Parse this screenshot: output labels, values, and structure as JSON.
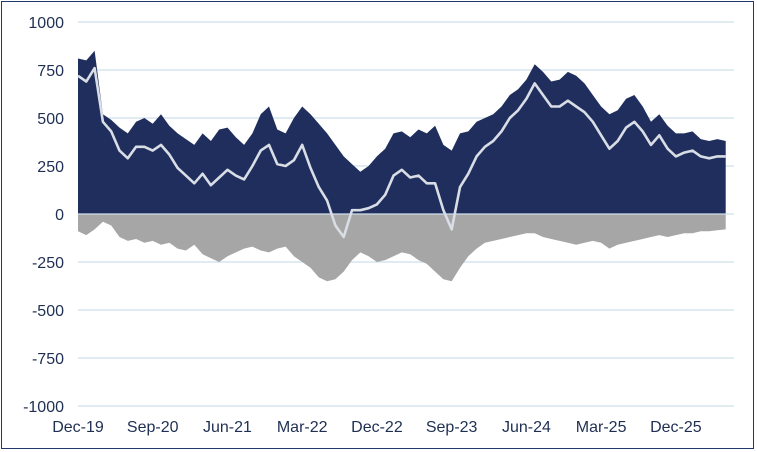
{
  "chart_data": {
    "type": "area",
    "x_tick_labels": [
      "Dec-19",
      "Sep-20",
      "Jun-21",
      "Mar-22",
      "Dec-22",
      "Sep-23",
      "Jun-24",
      "Mar-25",
      "Dec-25"
    ],
    "y_tick_labels": [
      "1000",
      "750",
      "500",
      "250",
      "0",
      "-250",
      "-500",
      "-750",
      "-1000"
    ],
    "ylim": [
      -1000,
      1000
    ],
    "xlim": [
      "2019-12",
      "2026-07"
    ],
    "grid": true,
    "legend": "none",
    "colors": {
      "positive_area": "#1f2e5c",
      "negative_area": "#a6a6a6",
      "net_line": "#d9dde6",
      "grid": "#cfe0ea",
      "axis_text": "#1f2f52"
    },
    "series": [
      {
        "kind": "area-positive",
        "x": [
          "2019-12",
          "2020-01",
          "2020-02",
          "2020-03",
          "2020-04",
          "2020-05",
          "2020-06",
          "2020-07",
          "2020-08",
          "2020-09",
          "2020-10",
          "2020-11",
          "2020-12",
          "2021-01",
          "2021-02",
          "2021-03",
          "2021-04",
          "2021-05",
          "2021-06",
          "2021-07",
          "2021-08",
          "2021-09",
          "2021-10",
          "2021-11",
          "2021-12",
          "2022-01",
          "2022-02",
          "2022-03",
          "2022-04",
          "2022-05",
          "2022-06",
          "2022-07",
          "2022-08",
          "2022-09",
          "2022-10",
          "2022-11",
          "2022-12",
          "2023-01",
          "2023-02",
          "2023-03",
          "2023-04",
          "2023-05",
          "2023-06",
          "2023-07",
          "2023-08",
          "2023-09",
          "2023-10",
          "2023-11",
          "2023-12",
          "2024-01",
          "2024-02",
          "2024-03",
          "2024-04",
          "2024-05",
          "2024-06",
          "2024-07",
          "2024-08",
          "2024-09",
          "2024-10",
          "2024-11",
          "2024-12",
          "2025-01",
          "2025-02",
          "2025-03",
          "2025-04",
          "2025-05",
          "2025-06",
          "2025-07",
          "2025-08",
          "2025-09",
          "2025-10",
          "2025-11",
          "2025-12",
          "2026-01",
          "2026-02",
          "2026-03",
          "2026-04",
          "2026-05",
          "2026-06"
        ],
        "values": [
          810,
          800,
          850,
          520,
          490,
          450,
          420,
          480,
          500,
          470,
          520,
          460,
          420,
          390,
          360,
          420,
          380,
          440,
          450,
          400,
          360,
          420,
          520,
          560,
          440,
          420,
          500,
          560,
          520,
          470,
          420,
          360,
          300,
          260,
          220,
          250,
          300,
          340,
          420,
          430,
          400,
          440,
          420,
          460,
          360,
          330,
          420,
          430,
          480,
          500,
          520,
          560,
          620,
          650,
          700,
          780,
          740,
          690,
          700,
          740,
          720,
          680,
          620,
          560,
          520,
          540,
          600,
          620,
          560,
          480,
          520,
          460,
          420,
          420,
          430,
          390,
          380,
          390,
          380
        ]
      },
      {
        "kind": "area-negative",
        "x": [
          "2019-12",
          "2020-01",
          "2020-02",
          "2020-03",
          "2020-04",
          "2020-05",
          "2020-06",
          "2020-07",
          "2020-08",
          "2020-09",
          "2020-10",
          "2020-11",
          "2020-12",
          "2021-01",
          "2021-02",
          "2021-03",
          "2021-04",
          "2021-05",
          "2021-06",
          "2021-07",
          "2021-08",
          "2021-09",
          "2021-10",
          "2021-11",
          "2021-12",
          "2022-01",
          "2022-02",
          "2022-03",
          "2022-04",
          "2022-05",
          "2022-06",
          "2022-07",
          "2022-08",
          "2022-09",
          "2022-10",
          "2022-11",
          "2022-12",
          "2023-01",
          "2023-02",
          "2023-03",
          "2023-04",
          "2023-05",
          "2023-06",
          "2023-07",
          "2023-08",
          "2023-09",
          "2023-10",
          "2023-11",
          "2023-12",
          "2024-01",
          "2024-02",
          "2024-03",
          "2024-04",
          "2024-05",
          "2024-06",
          "2024-07",
          "2024-08",
          "2024-09",
          "2024-10",
          "2024-11",
          "2024-12",
          "2025-01",
          "2025-02",
          "2025-03",
          "2025-04",
          "2025-05",
          "2025-06",
          "2025-07",
          "2025-08",
          "2025-09",
          "2025-10",
          "2025-11",
          "2025-12",
          "2026-01",
          "2026-02",
          "2026-03",
          "2026-04",
          "2026-05",
          "2026-06"
        ],
        "values": [
          -90,
          -110,
          -80,
          -40,
          -60,
          -120,
          -140,
          -130,
          -150,
          -140,
          -160,
          -150,
          -180,
          -190,
          -160,
          -210,
          -230,
          -250,
          -220,
          -200,
          -180,
          -170,
          -190,
          -200,
          -180,
          -170,
          -220,
          -250,
          -280,
          -330,
          -350,
          -340,
          -300,
          -240,
          -200,
          -220,
          -250,
          -240,
          -220,
          -200,
          -210,
          -240,
          -260,
          -300,
          -340,
          -350,
          -280,
          -220,
          -180,
          -150,
          -140,
          -130,
          -120,
          -110,
          -100,
          -100,
          -120,
          -130,
          -140,
          -150,
          -160,
          -150,
          -140,
          -150,
          -180,
          -160,
          -150,
          -140,
          -130,
          -120,
          -110,
          -120,
          -110,
          -100,
          -100,
          -90,
          -90,
          -85,
          -80
        ]
      },
      {
        "kind": "line",
        "x": [
          "2019-12",
          "2020-01",
          "2020-02",
          "2020-03",
          "2020-04",
          "2020-05",
          "2020-06",
          "2020-07",
          "2020-08",
          "2020-09",
          "2020-10",
          "2020-11",
          "2020-12",
          "2021-01",
          "2021-02",
          "2021-03",
          "2021-04",
          "2021-05",
          "2021-06",
          "2021-07",
          "2021-08",
          "2021-09",
          "2021-10",
          "2021-11",
          "2021-12",
          "2022-01",
          "2022-02",
          "2022-03",
          "2022-04",
          "2022-05",
          "2022-06",
          "2022-07",
          "2022-08",
          "2022-09",
          "2022-10",
          "2022-11",
          "2022-12",
          "2023-01",
          "2023-02",
          "2023-03",
          "2023-04",
          "2023-05",
          "2023-06",
          "2023-07",
          "2023-08",
          "2023-09",
          "2023-10",
          "2023-11",
          "2023-12",
          "2024-01",
          "2024-02",
          "2024-03",
          "2024-04",
          "2024-05",
          "2024-06",
          "2024-07",
          "2024-08",
          "2024-09",
          "2024-10",
          "2024-11",
          "2024-12",
          "2025-01",
          "2025-02",
          "2025-03",
          "2025-04",
          "2025-05",
          "2025-06",
          "2025-07",
          "2025-08",
          "2025-09",
          "2025-10",
          "2025-11",
          "2025-12",
          "2026-01",
          "2026-02",
          "2026-03",
          "2026-04",
          "2026-05",
          "2026-06"
        ],
        "values": [
          720,
          690,
          760,
          480,
          430,
          330,
          290,
          350,
          350,
          330,
          360,
          310,
          240,
          200,
          160,
          210,
          150,
          190,
          230,
          200,
          180,
          250,
          330,
          360,
          260,
          250,
          280,
          360,
          240,
          140,
          70,
          -60,
          -120,
          20,
          20,
          30,
          50,
          100,
          200,
          230,
          190,
          200,
          160,
          160,
          20,
          -80,
          140,
          210,
          300,
          350,
          380,
          430,
          500,
          540,
          600,
          680,
          620,
          560,
          560,
          590,
          560,
          530,
          480,
          410,
          340,
          380,
          450,
          480,
          430,
          360,
          410,
          340,
          300,
          320,
          330,
          300,
          290,
          300,
          300
        ]
      }
    ]
  }
}
